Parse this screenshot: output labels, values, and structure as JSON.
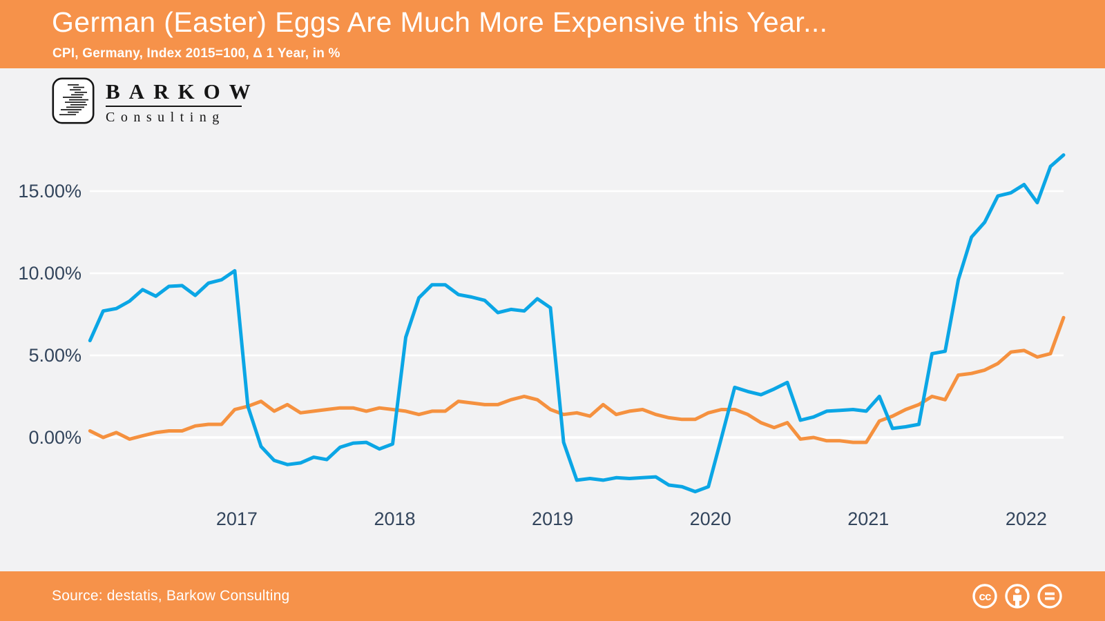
{
  "header": {
    "title": "German (Easter) Eggs Are Much More Expensive this Year...",
    "subtitle": "CPI, Germany, Index 2015=100, Δ 1 Year, in %"
  },
  "logo": {
    "brand": "BARKOW",
    "sub": "Consulting"
  },
  "colors": {
    "header_bg": "#F6924A",
    "footer_bg": "#F6924A",
    "page_bg": "#F2F2F3",
    "grid": "#FFFFFF",
    "axis_text": "#33455C",
    "series_blue": "#0BA6E5",
    "series_orange": "#F5913F"
  },
  "chart_data": {
    "type": "line",
    "title": "German (Easter) Eggs Are Much More Expensive this Year...",
    "subtitle": "CPI, Germany, Index 2015=100, Δ 1 Year, in %",
    "x_unit": "month",
    "x_start": "2016-01",
    "x_end": "2022-03",
    "ylim": [
      -4.5,
      18.5
    ],
    "grid": "horizontal-white",
    "legend": "none",
    "y_ticks": [
      15,
      10,
      5,
      0
    ],
    "y_tick_labels": [
      "15.00%",
      "10.00%",
      "5.00%",
      "0.00%"
    ],
    "x_tick_labels": [
      "2017",
      "2018",
      "2019",
      "2020",
      "2021",
      "2022"
    ],
    "series": [
      {
        "id": "orange-line",
        "color": "#F5913F",
        "values": [
          0.4,
          0.0,
          0.3,
          -0.1,
          0.1,
          0.3,
          0.4,
          0.4,
          0.7,
          0.8,
          0.8,
          1.7,
          1.9,
          2.2,
          1.6,
          2.0,
          1.5,
          1.6,
          1.7,
          1.8,
          1.8,
          1.6,
          1.8,
          1.7,
          1.6,
          1.4,
          1.6,
          1.6,
          2.2,
          2.1,
          2.0,
          2.0,
          2.3,
          2.5,
          2.3,
          1.7,
          1.4,
          1.5,
          1.3,
          2.0,
          1.4,
          1.6,
          1.7,
          1.4,
          1.2,
          1.1,
          1.1,
          1.5,
          1.7,
          1.7,
          1.4,
          0.9,
          0.6,
          0.9,
          -0.1,
          0.0,
          -0.2,
          -0.2,
          -0.3,
          -0.3,
          1.0,
          1.3,
          1.7,
          2.0,
          2.5,
          2.3,
          3.8,
          3.9,
          4.1,
          4.5,
          5.2,
          5.3,
          4.9,
          5.1,
          7.3
        ]
      },
      {
        "id": "blue-line",
        "color": "#0BA6E5",
        "values": [
          5.9,
          7.7,
          7.85,
          8.3,
          9.0,
          8.6,
          9.2,
          9.25,
          8.65,
          9.4,
          9.6,
          10.15,
          1.9,
          -0.55,
          -1.4,
          -1.65,
          -1.55,
          -1.2,
          -1.35,
          -0.6,
          -0.35,
          -0.3,
          -0.7,
          -0.4,
          6.1,
          8.5,
          9.3,
          9.3,
          8.7,
          8.55,
          8.35,
          7.6,
          7.8,
          7.7,
          8.45,
          7.9,
          -0.3,
          -2.6,
          -2.5,
          -2.6,
          -2.45,
          -2.5,
          -2.45,
          -2.4,
          -2.9,
          -3.0,
          -3.3,
          -3.0,
          0.0,
          3.05,
          2.8,
          2.6,
          2.95,
          3.35,
          1.05,
          1.25,
          1.6,
          1.65,
          1.7,
          1.6,
          2.5,
          0.55,
          0.65,
          0.8,
          5.1,
          5.25,
          9.6,
          12.2,
          13.1,
          14.7,
          14.9,
          15.4,
          14.3,
          16.5,
          17.2
        ]
      }
    ]
  },
  "footer": {
    "source": "Source: destatis, Barkow Consulting",
    "license_icons": [
      "cc",
      "by-person",
      "nd-equals"
    ]
  }
}
